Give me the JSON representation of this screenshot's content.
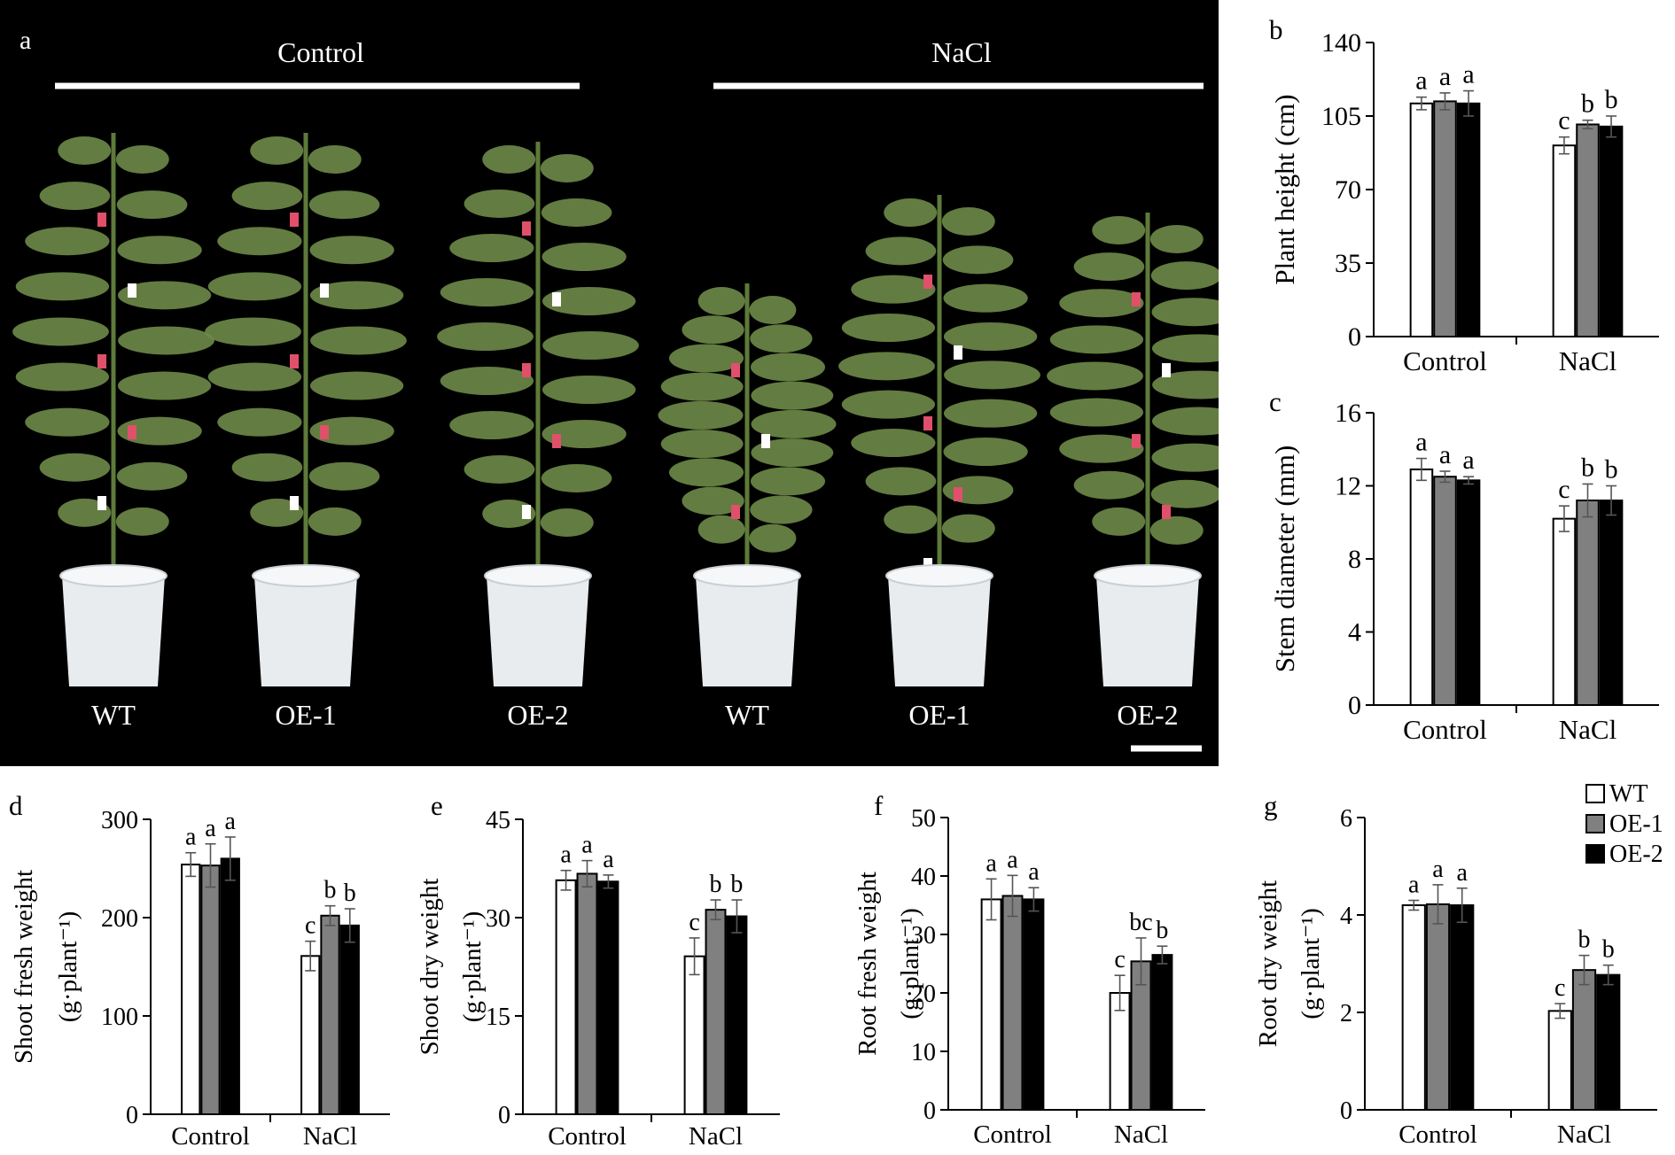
{
  "colors": {
    "WT": "#ffffff",
    "OE-1": "#808080",
    "OE-2": "#000000",
    "photo_background": "#000000",
    "plant_leaf": "#6e8a48",
    "tag_red": "#e0506a",
    "pot": "#e8ecef"
  },
  "photo": {
    "panel_letter": "a",
    "group_labels": [
      "Control",
      "NaCl"
    ],
    "plant_labels": [
      "WT",
      "OE-1",
      "OE-2",
      "WT",
      "OE-1",
      "OE-2"
    ]
  },
  "legend": {
    "items": [
      {
        "label": "WT",
        "color": "#ffffff"
      },
      {
        "label": "OE-1",
        "color": "#808080"
      },
      {
        "label": "OE-2",
        "color": "#000000"
      }
    ]
  },
  "chart_data": [
    {
      "id": "b",
      "type": "bar",
      "panel_letter": "b",
      "categories": [
        "Control",
        "NaCl"
      ],
      "ylabel": "Plant height (cm)",
      "ylabel_unit": "",
      "ylim": [
        0,
        140
      ],
      "yticks": [
        "0",
        "35",
        "70",
        "105",
        "140"
      ],
      "series": [
        {
          "name": "WT",
          "values": [
            111,
            91
          ],
          "errors": [
            3,
            4
          ],
          "letters": [
            "a",
            "c"
          ]
        },
        {
          "name": "OE-1",
          "values": [
            112,
            101
          ],
          "errors": [
            4,
            2
          ],
          "letters": [
            "a",
            "b"
          ]
        },
        {
          "name": "OE-2",
          "values": [
            111,
            100
          ],
          "errors": [
            6,
            5
          ],
          "letters": [
            "a",
            "b"
          ]
        }
      ]
    },
    {
      "id": "c",
      "type": "bar",
      "panel_letter": "c",
      "categories": [
        "Control",
        "NaCl"
      ],
      "ylabel": "Stem diameter (mm)",
      "ylabel_unit": "",
      "ylim": [
        0,
        16
      ],
      "yticks": [
        "0",
        "4",
        "8",
        "12",
        "16"
      ],
      "series": [
        {
          "name": "WT",
          "values": [
            12.9,
            10.2
          ],
          "errors": [
            0.6,
            0.7
          ],
          "letters": [
            "a",
            "c"
          ]
        },
        {
          "name": "OE-1",
          "values": [
            12.5,
            11.2
          ],
          "errors": [
            0.3,
            0.9
          ],
          "letters": [
            "a",
            "b"
          ]
        },
        {
          "name": "OE-2",
          "values": [
            12.3,
            11.2
          ],
          "errors": [
            0.2,
            0.8
          ],
          "letters": [
            "a",
            "b"
          ]
        }
      ]
    },
    {
      "id": "d",
      "type": "bar",
      "panel_letter": "d",
      "categories": [
        "Control",
        "NaCl"
      ],
      "ylabel": "Shoot fresh weight",
      "ylabel_unit": "(g·plant⁻¹)",
      "ylim": [
        0,
        300
      ],
      "yticks": [
        "0",
        "100",
        "200",
        "300"
      ],
      "series": [
        {
          "name": "WT",
          "values": [
            254,
            161
          ],
          "errors": [
            12,
            15
          ],
          "letters": [
            "a",
            "c"
          ]
        },
        {
          "name": "OE-1",
          "values": [
            253,
            202
          ],
          "errors": [
            22,
            10
          ],
          "letters": [
            "a",
            "b"
          ]
        },
        {
          "name": "OE-2",
          "values": [
            260,
            192
          ],
          "errors": [
            22,
            17
          ],
          "letters": [
            "a",
            "b"
          ]
        }
      ]
    },
    {
      "id": "e",
      "type": "bar",
      "panel_letter": "e",
      "categories": [
        "Control",
        "NaCl"
      ],
      "ylabel": "Shoot dry weight",
      "ylabel_unit": "(g·plant⁻¹)",
      "ylim": [
        0,
        45
      ],
      "yticks": [
        "0",
        "15",
        "30",
        "45"
      ],
      "series": [
        {
          "name": "WT",
          "values": [
            35.7,
            24.1
          ],
          "errors": [
            1.5,
            2.8
          ],
          "letters": [
            "a",
            "c"
          ]
        },
        {
          "name": "OE-1",
          "values": [
            36.7,
            31.2
          ],
          "errors": [
            2.0,
            1.5
          ],
          "letters": [
            "a",
            "b"
          ]
        },
        {
          "name": "OE-2",
          "values": [
            35.5,
            30.2
          ],
          "errors": [
            1.0,
            2.5
          ],
          "letters": [
            "a",
            "b"
          ]
        }
      ]
    },
    {
      "id": "f",
      "type": "bar",
      "panel_letter": "f",
      "categories": [
        "Control",
        "NaCl"
      ],
      "ylabel": "Root fresh weight",
      "ylabel_unit": "(g·plant⁻¹)",
      "ylim": [
        0,
        50
      ],
      "yticks": [
        "0",
        "10",
        "20",
        "30",
        "40",
        "50"
      ],
      "series": [
        {
          "name": "WT",
          "values": [
            36,
            20
          ],
          "errors": [
            3.5,
            3.0
          ],
          "letters": [
            "a",
            "c"
          ]
        },
        {
          "name": "OE-1",
          "values": [
            36.6,
            25.4
          ],
          "errors": [
            3.5,
            4.0
          ],
          "letters": [
            "a",
            "bc"
          ]
        },
        {
          "name": "OE-2",
          "values": [
            36,
            26.5
          ],
          "errors": [
            2.0,
            1.5
          ],
          "letters": [
            "a",
            "b"
          ]
        }
      ]
    },
    {
      "id": "g",
      "type": "bar",
      "panel_letter": "g",
      "categories": [
        "Control",
        "NaCl"
      ],
      "ylabel": "Root dry weight",
      "ylabel_unit": "(g·plant⁻¹)",
      "ylim": [
        0,
        6
      ],
      "yticks": [
        "0",
        "2",
        "4",
        "6"
      ],
      "series": [
        {
          "name": "WT",
          "values": [
            4.2,
            2.03
          ],
          "errors": [
            0.1,
            0.15
          ],
          "letters": [
            "a",
            "c"
          ]
        },
        {
          "name": "OE-1",
          "values": [
            4.22,
            2.87
          ],
          "errors": [
            0.4,
            0.3
          ],
          "letters": [
            "a",
            "b"
          ]
        },
        {
          "name": "OE-2",
          "values": [
            4.2,
            2.77
          ],
          "errors": [
            0.35,
            0.2
          ],
          "letters": [
            "a",
            "b"
          ]
        }
      ]
    }
  ]
}
